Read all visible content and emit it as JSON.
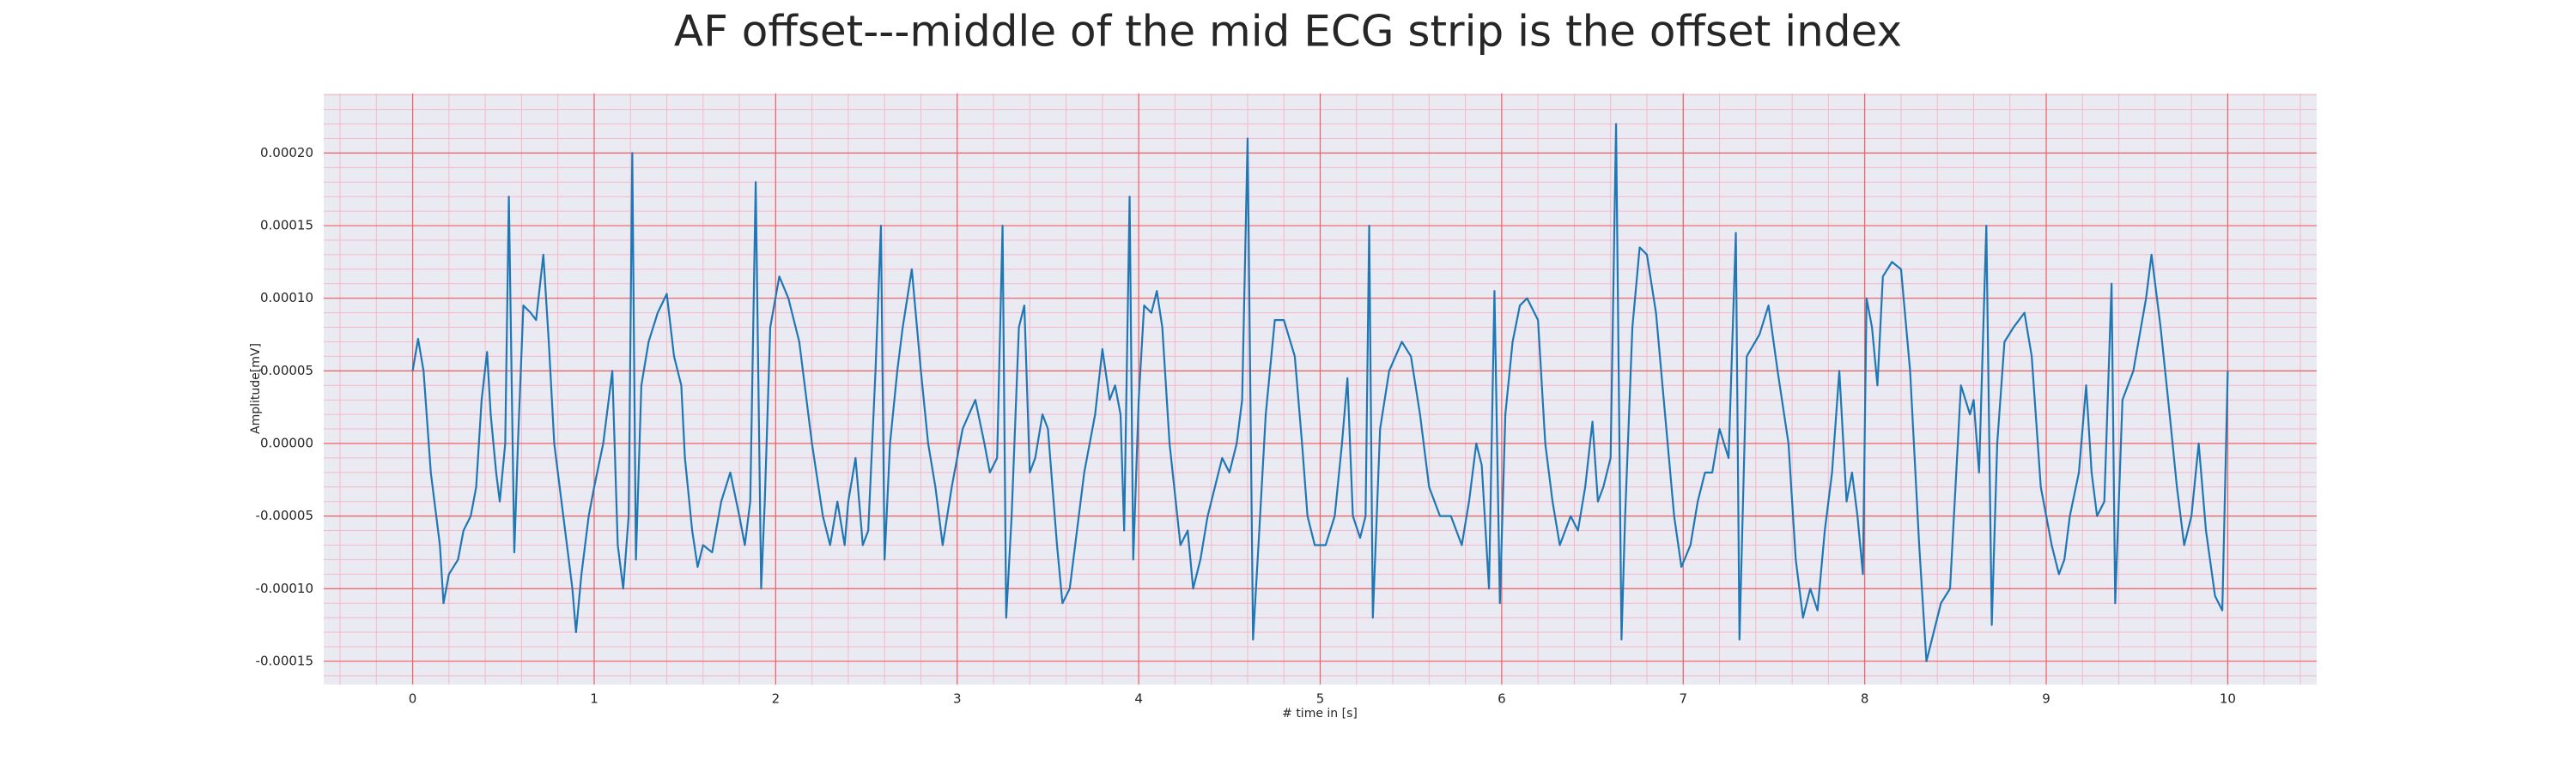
{
  "chart_data": {
    "type": "line",
    "title": "AF offset---middle of the mid ECG strip is the offset index",
    "xlabel": "# time in [s]",
    "ylabel": "Amplitude[mV]",
    "color": "#1f77b4",
    "grid": true,
    "minor_grid": true,
    "xlim": [
      -0.49,
      10.49
    ],
    "ylim": [
      -0.000166,
      0.000241
    ],
    "xticks": [
      0,
      1,
      2,
      3,
      4,
      5,
      6,
      7,
      8,
      9,
      10
    ],
    "yticks": [
      {
        "value": -0.00015,
        "label": "-0.00015"
      },
      {
        "value": -0.0001,
        "label": "-0.00010"
      },
      {
        "value": -5e-05,
        "label": "-0.00005"
      },
      {
        "value": 0,
        "label": "0.00000"
      },
      {
        "value": 5e-05,
        "label": "0.00005"
      },
      {
        "value": 0.0001,
        "label": "0.00010"
      },
      {
        "value": 0.00015,
        "label": "0.00015"
      },
      {
        "value": 0.0002,
        "label": "0.00020"
      }
    ],
    "x": [
      0.0,
      0.03,
      0.06,
      0.1,
      0.15,
      0.17,
      0.2,
      0.25,
      0.28,
      0.32,
      0.35,
      0.38,
      0.41,
      0.43,
      0.46,
      0.48,
      0.51,
      0.53,
      0.56,
      0.58,
      0.61,
      0.65,
      0.68,
      0.72,
      0.75,
      0.78,
      0.82,
      0.85,
      0.88,
      0.9,
      0.93,
      0.97,
      1.0,
      1.05,
      1.1,
      1.13,
      1.16,
      1.19,
      1.21,
      1.23,
      1.26,
      1.3,
      1.35,
      1.4,
      1.44,
      1.48,
      1.5,
      1.54,
      1.57,
      1.6,
      1.65,
      1.7,
      1.75,
      1.8,
      1.83,
      1.86,
      1.89,
      1.92,
      1.94,
      1.97,
      2.02,
      2.07,
      2.13,
      2.2,
      2.26,
      2.3,
      2.34,
      2.38,
      2.4,
      2.44,
      2.48,
      2.51,
      2.55,
      2.58,
      2.6,
      2.63,
      2.67,
      2.7,
      2.75,
      2.8,
      2.84,
      2.88,
      2.92,
      2.97,
      3.03,
      3.1,
      3.15,
      3.18,
      3.22,
      3.25,
      3.27,
      3.3,
      3.34,
      3.37,
      3.4,
      3.43,
      3.47,
      3.5,
      3.55,
      3.58,
      3.62,
      3.66,
      3.7,
      3.76,
      3.8,
      3.84,
      3.87,
      3.9,
      3.92,
      3.95,
      3.97,
      4.0,
      4.03,
      4.07,
      4.1,
      4.13,
      4.17,
      4.23,
      4.27,
      4.3,
      4.34,
      4.38,
      4.42,
      4.46,
      4.5,
      4.54,
      4.57,
      4.6,
      4.63,
      4.66,
      4.7,
      4.75,
      4.8,
      4.86,
      4.9,
      4.93,
      4.97,
      5.03,
      5.08,
      5.12,
      5.15,
      5.18,
      5.22,
      5.25,
      5.27,
      5.29,
      5.33,
      5.38,
      5.45,
      5.5,
      5.55,
      5.6,
      5.66,
      5.72,
      5.78,
      5.82,
      5.86,
      5.89,
      5.93,
      5.96,
      5.99,
      6.02,
      6.06,
      6.1,
      6.14,
      6.2,
      6.24,
      6.28,
      6.32,
      6.38,
      6.42,
      6.46,
      6.5,
      6.53,
      6.56,
      6.6,
      6.63,
      6.66,
      6.68,
      6.72,
      6.76,
      6.8,
      6.85,
      6.9,
      6.95,
      6.99,
      7.04,
      7.08,
      7.12,
      7.16,
      7.2,
      7.25,
      7.29,
      7.31,
      7.35,
      7.42,
      7.47,
      7.52,
      7.58,
      7.62,
      7.66,
      7.7,
      7.74,
      7.78,
      7.82,
      7.86,
      7.9,
      7.93,
      7.96,
      7.99,
      8.01,
      8.04,
      8.07,
      8.1,
      8.15,
      8.2,
      8.25,
      8.3,
      8.34,
      8.38,
      8.42,
      8.47,
      8.5,
      8.53,
      8.58,
      8.6,
      8.63,
      8.67,
      8.7,
      8.73,
      8.77,
      8.82,
      8.88,
      8.92,
      8.97,
      9.03,
      9.07,
      9.1,
      9.13,
      9.18,
      9.22,
      9.25,
      9.28,
      9.32,
      9.36,
      9.38,
      9.42,
      9.48,
      9.55,
      9.58,
      9.63,
      9.68,
      9.72,
      9.76,
      9.8,
      9.84,
      9.88,
      9.93,
      9.97,
      10.0
    ],
    "values": [
      5e-05,
      7.2e-05,
      5e-05,
      -2e-05,
      -7e-05,
      -0.00011,
      -9e-05,
      -8e-05,
      -6e-05,
      -5e-05,
      -3e-05,
      3e-05,
      6.3e-05,
      2e-05,
      -2e-05,
      -4e-05,
      0,
      0.00017,
      -7.5e-05,
      0,
      9.5e-05,
      9e-05,
      8.5e-05,
      0.00013,
      7e-05,
      0,
      -4e-05,
      -7e-05,
      -0.0001,
      -0.00013,
      -9e-05,
      -5e-05,
      -3e-05,
      0,
      5e-05,
      -7e-05,
      -0.0001,
      -5e-05,
      0.0002,
      -8e-05,
      4e-05,
      7e-05,
      9e-05,
      0.000103,
      6e-05,
      4e-05,
      -1e-05,
      -6e-05,
      -8.5e-05,
      -7e-05,
      -7.5e-05,
      -4e-05,
      -2e-05,
      -5e-05,
      -7e-05,
      -4e-05,
      0.00018,
      -0.0001,
      -4e-05,
      8e-05,
      0.000115,
      0.0001,
      7e-05,
      0,
      -5e-05,
      -7e-05,
      -4e-05,
      -7e-05,
      -4e-05,
      -1e-05,
      -7e-05,
      -6e-05,
      5e-05,
      0.00015,
      -8e-05,
      0,
      5e-05,
      8e-05,
      0.00012,
      5e-05,
      0,
      -3e-05,
      -7e-05,
      -3e-05,
      1e-05,
      3e-05,
      0,
      -2e-05,
      -1e-05,
      0.00015,
      -0.00012,
      -5e-05,
      8e-05,
      9.5e-05,
      -2e-05,
      -1e-05,
      2e-05,
      1e-05,
      -7e-05,
      -0.00011,
      -0.0001,
      -6e-05,
      -2e-05,
      2e-05,
      6.5e-05,
      3e-05,
      4e-05,
      2e-05,
      -6e-05,
      0.00017,
      -8e-05,
      3e-05,
      9.5e-05,
      9e-05,
      0.000105,
      8e-05,
      0,
      -7e-05,
      -6e-05,
      -0.0001,
      -8e-05,
      -5e-05,
      -3e-05,
      -1e-05,
      -2e-05,
      0,
      3e-05,
      0.00021,
      -0.000135,
      -7e-05,
      2e-05,
      8.5e-05,
      8.5e-05,
      6e-05,
      0,
      -5e-05,
      -7e-05,
      -7e-05,
      -5e-05,
      0,
      4.5e-05,
      -5e-05,
      -6.5e-05,
      -5e-05,
      0.00015,
      -0.00012,
      1e-05,
      5e-05,
      7e-05,
      6e-05,
      2e-05,
      -3e-05,
      -5e-05,
      -5e-05,
      -7e-05,
      -4e-05,
      0,
      -1.5e-05,
      -0.0001,
      0.000105,
      -0.00011,
      2e-05,
      7e-05,
      9.5e-05,
      0.0001,
      8.5e-05,
      0,
      -4e-05,
      -7e-05,
      -5e-05,
      -6e-05,
      -3e-05,
      1.5e-05,
      -4e-05,
      -3e-05,
      -1e-05,
      0.00022,
      -0.000135,
      -5e-05,
      8e-05,
      0.000135,
      0.00013,
      9e-05,
      2e-05,
      -5e-05,
      -8.5e-05,
      -7e-05,
      -4e-05,
      -2e-05,
      -2e-05,
      1e-05,
      -1e-05,
      0.000145,
      -0.000135,
      6e-05,
      7.5e-05,
      9.5e-05,
      5e-05,
      0,
      -8e-05,
      -0.00012,
      -0.0001,
      -0.000115,
      -6e-05,
      -2e-05,
      5e-05,
      -4e-05,
      -2e-05,
      -5e-05,
      -9e-05,
      0.0001,
      8e-05,
      4e-05,
      0.000115,
      0.000125,
      0.00012,
      5e-05,
      -7e-05,
      -0.00015,
      -0.00013,
      -0.00011,
      -0.0001,
      -3e-05,
      4e-05,
      2e-05,
      3e-05,
      -2e-05,
      0.00015,
      -0.000125,
      0,
      7e-05,
      8e-05,
      9e-05,
      6e-05,
      -3e-05,
      -7e-05,
      -9e-05,
      -8e-05,
      -5e-05,
      -2e-05,
      4e-05,
      -2e-05,
      -5e-05,
      -4e-05,
      0.00011,
      -0.00011,
      3e-05,
      5e-05,
      0.0001,
      0.00013,
      8e-05,
      2e-05,
      -3e-05,
      -7e-05,
      -5e-05,
      0,
      -6e-05,
      -0.000105,
      -0.000115,
      5e-05
    ]
  }
}
